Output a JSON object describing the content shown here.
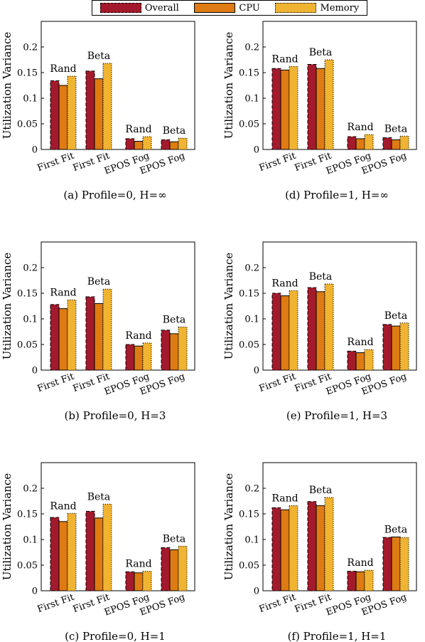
{
  "legend": {
    "items": [
      {
        "label": "Overall",
        "color": "#a31a2c",
        "edge": "dashed"
      },
      {
        "label": "CPU",
        "color": "#de7b12",
        "edge": "solid"
      },
      {
        "label": "Memory",
        "color": "#f0b432",
        "edge": "dotted"
      }
    ]
  },
  "chart_data": [
    {
      "type": "bar",
      "caption": "(a) Profile=0, H=∞",
      "ylabel": "Utilization Variance",
      "ylim": [
        0,
        0.25
      ],
      "yticks": [
        "0",
        "0.05",
        "0.1",
        "0.15",
        "0.2"
      ],
      "categories": [
        "First Fit",
        "First Fit",
        "EPOS Fog",
        "EPOS Fog"
      ],
      "group_labels": [
        "Rand",
        "Beta",
        "Rand",
        "Beta"
      ],
      "series": [
        {
          "name": "Overall",
          "values": [
            0.134,
            0.153,
            0.021,
            0.019
          ]
        },
        {
          "name": "CPU",
          "values": [
            0.125,
            0.138,
            0.016,
            0.015
          ]
        },
        {
          "name": "Memory",
          "values": [
            0.143,
            0.168,
            0.025,
            0.022
          ]
        }
      ]
    },
    {
      "type": "bar",
      "caption": "(b) Profile=0, H=3",
      "ylabel": "Utilization Variance",
      "ylim": [
        0,
        0.25
      ],
      "yticks": [
        "0",
        "0.05",
        "0.1",
        "0.15",
        "0.2"
      ],
      "categories": [
        "First Fit",
        "First Fit",
        "EPOS Fog",
        "EPOS Fog"
      ],
      "group_labels": [
        "Rand",
        "Beta",
        "Rand",
        "Beta"
      ],
      "series": [
        {
          "name": "Overall",
          "values": [
            0.128,
            0.143,
            0.05,
            0.078
          ]
        },
        {
          "name": "CPU",
          "values": [
            0.12,
            0.13,
            0.047,
            0.071
          ]
        },
        {
          "name": "Memory",
          "values": [
            0.137,
            0.158,
            0.053,
            0.084
          ]
        }
      ]
    },
    {
      "type": "bar",
      "caption": "(c) Profile=0, H=1",
      "ylabel": "Utilization Variance",
      "ylim": [
        0,
        0.25
      ],
      "yticks": [
        "0",
        "0.05",
        "0.1",
        "0.15",
        "0.2"
      ],
      "categories": [
        "First Fit",
        "First Fit",
        "EPOS Fog",
        "EPOS Fog"
      ],
      "group_labels": [
        "Rand",
        "Beta",
        "Rand",
        "Beta"
      ],
      "series": [
        {
          "name": "Overall",
          "values": [
            0.143,
            0.155,
            0.037,
            0.084
          ]
        },
        {
          "name": "CPU",
          "values": [
            0.135,
            0.142,
            0.035,
            0.08
          ]
        },
        {
          "name": "Memory",
          "values": [
            0.151,
            0.169,
            0.038,
            0.087
          ]
        }
      ]
    },
    {
      "type": "bar",
      "caption": "(d) Profile=1, H=∞",
      "ylabel": "Utilization Variance",
      "ylim": [
        0,
        0.25
      ],
      "yticks": [
        "0",
        "0.05",
        "0.1",
        "0.15",
        "0.2"
      ],
      "categories": [
        "First Fit",
        "First Fit",
        "EPOS Fog",
        "EPOS Fog"
      ],
      "group_labels": [
        "Rand",
        "Beta",
        "Rand",
        "Beta"
      ],
      "series": [
        {
          "name": "Overall",
          "values": [
            0.158,
            0.166,
            0.025,
            0.023
          ]
        },
        {
          "name": "CPU",
          "values": [
            0.155,
            0.158,
            0.021,
            0.019
          ]
        },
        {
          "name": "Memory",
          "values": [
            0.162,
            0.175,
            0.029,
            0.026
          ]
        }
      ]
    },
    {
      "type": "bar",
      "caption": "(e) Profile=1, H=3",
      "ylabel": "Utilization Variance",
      "ylim": [
        0,
        0.25
      ],
      "yticks": [
        "0",
        "0.05",
        "0.1",
        "0.15",
        "0.2"
      ],
      "categories": [
        "First Fit",
        "First Fit",
        "EPOS Fog",
        "EPOS Fog"
      ],
      "group_labels": [
        "Rand",
        "Beta",
        "Rand",
        "Beta"
      ],
      "series": [
        {
          "name": "Overall",
          "values": [
            0.15,
            0.161,
            0.037,
            0.089
          ]
        },
        {
          "name": "CPU",
          "values": [
            0.145,
            0.153,
            0.034,
            0.086
          ]
        },
        {
          "name": "Memory",
          "values": [
            0.155,
            0.168,
            0.04,
            0.092
          ]
        }
      ]
    },
    {
      "type": "bar",
      "caption": "(f) Profile=1, H=1",
      "ylabel": "Utilization Variance",
      "ylim": [
        0,
        0.25
      ],
      "yticks": [
        "0",
        "0.05",
        "0.1",
        "0.15",
        "0.2"
      ],
      "categories": [
        "First Fit",
        "First Fit",
        "EPOS Fog",
        "EPOS Fog"
      ],
      "group_labels": [
        "Rand",
        "Beta",
        "Rand",
        "Beta"
      ],
      "series": [
        {
          "name": "Overall",
          "values": [
            0.162,
            0.174,
            0.038,
            0.104
          ]
        },
        {
          "name": "CPU",
          "values": [
            0.158,
            0.166,
            0.037,
            0.105
          ]
        },
        {
          "name": "Memory",
          "values": [
            0.166,
            0.182,
            0.04,
            0.104
          ]
        }
      ]
    }
  ]
}
